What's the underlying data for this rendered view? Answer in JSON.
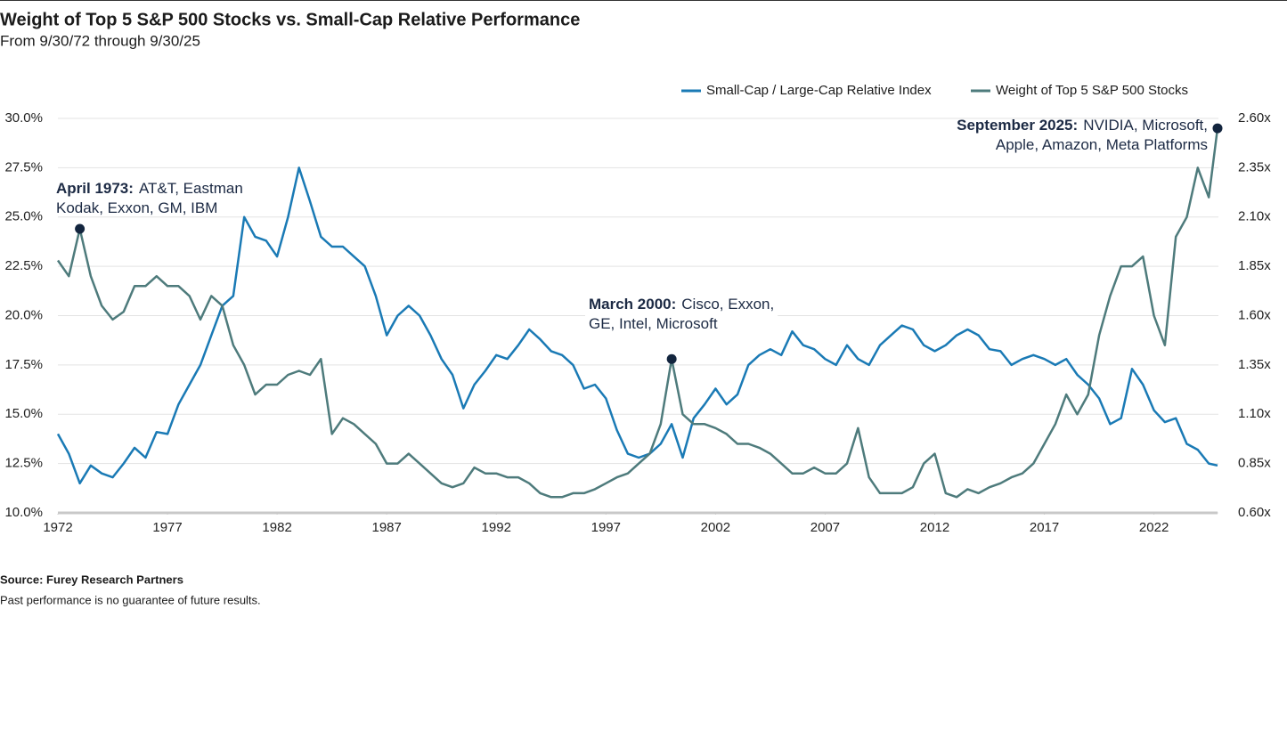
{
  "chart_data": {
    "type": "line",
    "title": "Weight of Top 5 S&P 500 Stocks vs. Small-Cap Relative Performance",
    "subtitle": "From 9/30/72 through 9/30/25",
    "source": "Source: Furey Research Partners",
    "note": "Past performance is no guarantee of future results.",
    "x": [
      1972.0,
      1972.5,
      1973.0,
      1973.5,
      1974.0,
      1974.5,
      1975.0,
      1975.5,
      1976.0,
      1976.5,
      1977.0,
      1977.5,
      1978.0,
      1978.5,
      1979.0,
      1979.5,
      1980.0,
      1980.5,
      1981.0,
      1981.5,
      1982.0,
      1982.5,
      1983.0,
      1983.5,
      1984.0,
      1984.5,
      1985.0,
      1985.5,
      1986.0,
      1986.5,
      1987.0,
      1987.5,
      1988.0,
      1988.5,
      1989.0,
      1989.5,
      1990.0,
      1990.5,
      1991.0,
      1991.5,
      1992.0,
      1992.5,
      1993.0,
      1993.5,
      1994.0,
      1994.5,
      1995.0,
      1995.5,
      1996.0,
      1996.5,
      1997.0,
      1997.5,
      1998.0,
      1998.5,
      1999.0,
      1999.5,
      2000.0,
      2000.5,
      2001.0,
      2001.5,
      2002.0,
      2002.5,
      2003.0,
      2003.5,
      2004.0,
      2004.5,
      2005.0,
      2005.5,
      2006.0,
      2006.5,
      2007.0,
      2007.5,
      2008.0,
      2008.5,
      2009.0,
      2009.5,
      2010.0,
      2010.5,
      2011.0,
      2011.5,
      2012.0,
      2012.5,
      2013.0,
      2013.5,
      2014.0,
      2014.5,
      2015.0,
      2015.5,
      2016.0,
      2016.5,
      2017.0,
      2017.5,
      2018.0,
      2018.5,
      2019.0,
      2019.5,
      2020.0,
      2020.5,
      2021.0,
      2021.5,
      2022.0,
      2022.5,
      2023.0,
      2023.5,
      2024.0,
      2024.5,
      2024.9
    ],
    "xlim": [
      1972,
      2024.9
    ],
    "xticks": [
      1972,
      1977,
      1982,
      1987,
      1992,
      1997,
      2002,
      2007,
      2012,
      2017,
      2022
    ],
    "ylim": [
      10,
      30
    ],
    "yticks": [
      {
        "value": 10,
        "label": "10.0%"
      },
      {
        "value": 12.5,
        "label": "12.5%"
      },
      {
        "value": 15,
        "label": "15.0%"
      },
      {
        "value": 17.5,
        "label": "17.5%"
      },
      {
        "value": 20,
        "label": "20.0%"
      },
      {
        "value": 22.5,
        "label": "22.5%"
      },
      {
        "value": 25,
        "label": "25.0%"
      },
      {
        "value": 27.5,
        "label": "27.5%"
      },
      {
        "value": 30,
        "label": "30.0%"
      }
    ],
    "y2lim": [
      0.6,
      2.6
    ],
    "y2ticks": [
      {
        "value": 0.6,
        "label": "0.60x"
      },
      {
        "value": 0.85,
        "label": "0.85x"
      },
      {
        "value": 1.1,
        "label": "1.10x"
      },
      {
        "value": 1.35,
        "label": "1.35x"
      },
      {
        "value": 1.6,
        "label": "1.60x"
      },
      {
        "value": 1.85,
        "label": "1.85x"
      },
      {
        "value": 2.1,
        "label": "2.10x"
      },
      {
        "value": 2.35,
        "label": "2.35x"
      },
      {
        "value": 2.6,
        "label": "2.60x"
      }
    ],
    "grid": true,
    "series": [
      {
        "name": "Small-Cap / Large-Cap Relative Index",
        "color": "#1a7ab5",
        "axis": "y2",
        "values": [
          1.0,
          0.9,
          0.75,
          0.84,
          0.8,
          0.78,
          0.85,
          0.93,
          0.88,
          1.01,
          1.0,
          1.15,
          1.25,
          1.35,
          1.5,
          1.65,
          1.7,
          2.1,
          2.0,
          1.98,
          1.9,
          2.1,
          2.35,
          2.18,
          2.0,
          1.95,
          1.95,
          1.9,
          1.85,
          1.7,
          1.5,
          1.6,
          1.65,
          1.6,
          1.5,
          1.38,
          1.3,
          1.13,
          1.25,
          1.32,
          1.4,
          1.38,
          1.45,
          1.53,
          1.48,
          1.42,
          1.4,
          1.35,
          1.23,
          1.25,
          1.18,
          1.02,
          0.9,
          0.88,
          0.9,
          0.95,
          1.05,
          0.88,
          1.08,
          1.15,
          1.23,
          1.15,
          1.2,
          1.35,
          1.4,
          1.43,
          1.4,
          1.52,
          1.45,
          1.43,
          1.38,
          1.35,
          1.45,
          1.38,
          1.35,
          1.45,
          1.5,
          1.55,
          1.53,
          1.45,
          1.42,
          1.45,
          1.5,
          1.53,
          1.5,
          1.43,
          1.42,
          1.35,
          1.38,
          1.4,
          1.38,
          1.35,
          1.38,
          1.3,
          1.25,
          1.18,
          1.05,
          1.08,
          1.33,
          1.25,
          1.12,
          1.06,
          1.08,
          0.95,
          0.92,
          0.85,
          0.84
        ]
      },
      {
        "name": "Weight of Top 5 S&P 500 Stocks",
        "color": "#4e7b7c",
        "values": [
          22.8,
          22.0,
          24.4,
          22.0,
          20.5,
          19.8,
          20.2,
          21.5,
          21.5,
          22.0,
          21.5,
          21.5,
          21.0,
          19.8,
          21.0,
          20.5,
          18.5,
          17.5,
          16.0,
          16.5,
          16.5,
          17.0,
          17.2,
          17.0,
          17.8,
          14.0,
          14.8,
          14.5,
          14.0,
          13.5,
          12.5,
          12.5,
          13.0,
          12.5,
          12.0,
          11.5,
          11.3,
          11.5,
          12.3,
          12.0,
          12.0,
          11.8,
          11.8,
          11.5,
          11.0,
          10.8,
          10.8,
          11.0,
          11.0,
          11.2,
          11.5,
          11.8,
          12.0,
          12.5,
          13.0,
          14.5,
          17.8,
          15.0,
          14.5,
          14.5,
          14.3,
          14.0,
          13.5,
          13.5,
          13.3,
          13.0,
          12.5,
          12.0,
          12.0,
          12.3,
          12.0,
          12.0,
          12.5,
          14.3,
          11.8,
          11.0,
          11.0,
          11.0,
          11.3,
          12.5,
          13.0,
          11.0,
          10.8,
          11.2,
          11.0,
          11.3,
          11.5,
          11.8,
          12.0,
          12.5,
          13.5,
          14.5,
          16.0,
          15.0,
          16.0,
          19.0,
          21.0,
          22.5,
          22.5,
          23.0,
          20.0,
          18.5,
          24.0,
          25.0,
          27.5,
          26.0,
          29.5
        ]
      }
    ],
    "annotations": [
      {
        "x": 1973.0,
        "label": "April 1973:",
        "lines": [
          "AT&T, Eastman",
          "Kodak, Exxon, GM, IBM"
        ]
      },
      {
        "x": 2000.0,
        "label": "March 2000:",
        "lines": [
          "Cisco, Exxon,",
          "GE, Intel, Microsoft"
        ]
      },
      {
        "x": 2024.9,
        "label": "September 2025:",
        "lines": [
          "NVIDIA, Microsoft,",
          "Apple, Amazon, Meta Platforms"
        ]
      }
    ]
  }
}
